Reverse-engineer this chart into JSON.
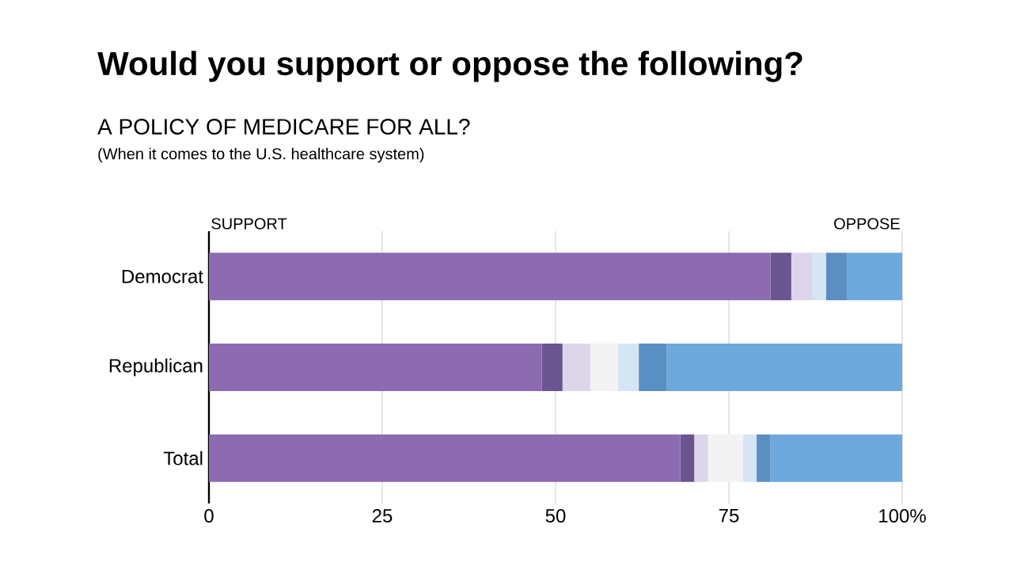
{
  "chart_data": {
    "type": "bar",
    "orientation": "horizontal",
    "stacked": true,
    "title": "Would you support or oppose the following?",
    "subtitle": "A POLICY OF MEDICARE FOR ALL?",
    "annotations": [
      "(When it comes to the U.S. healthcare system)",
      "SUPPORT",
      "OPPOSE"
    ],
    "categories": [
      "Democrat",
      "Republican",
      "Total"
    ],
    "series": [
      {
        "color": "#8c6bb1",
        "values": [
          81,
          48,
          68
        ]
      },
      {
        "color": "#6a5590",
        "values": [
          3,
          3,
          2
        ]
      },
      {
        "color": "#ddd5ea",
        "values": [
          3,
          4,
          2
        ]
      },
      {
        "color": "#f3f3f3",
        "values": [
          0,
          4,
          5
        ]
      },
      {
        "color": "#d6e5f4",
        "values": [
          2,
          3,
          2
        ]
      },
      {
        "color": "#5a8fc4",
        "values": [
          3,
          4,
          2
        ]
      },
      {
        "color": "#6fa8dc",
        "values": [
          8,
          34,
          19
        ]
      }
    ],
    "xlim": [
      0,
      100
    ],
    "xticks": [
      0,
      25,
      50,
      75,
      {
        "value": 100,
        "label": "100%"
      }
    ],
    "grid": "x"
  }
}
